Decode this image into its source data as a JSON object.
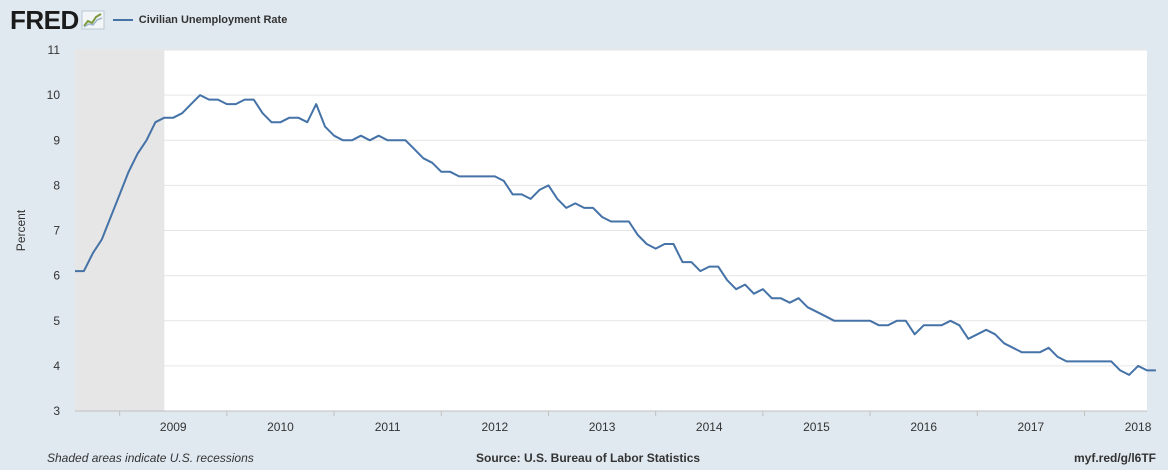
{
  "header": {
    "logo_text": "FRED",
    "logo_icon": "trend-chart-icon"
  },
  "footer": {
    "recession_note": "Shaded areas indicate U.S. recessions",
    "source": "Source: U.S. Bureau of Labor Statistics",
    "short_url": "myf.red/g/l6TF"
  },
  "colors": {
    "line": "#4572a7",
    "recession_shade": "#e6e6e6",
    "plot_background": "#ffffff",
    "page_background": "#e1e9f0",
    "grid": "#e6e6e6"
  },
  "chart_data": {
    "type": "line",
    "title": "",
    "xlabel": "",
    "ylabel": "Percent",
    "ylim": [
      3,
      11
    ],
    "yticks": [
      3,
      4,
      5,
      6,
      7,
      8,
      9,
      10,
      11
    ],
    "xlim": [
      "2008-08",
      "2018-08"
    ],
    "xticks": [
      "2009",
      "2010",
      "2011",
      "2012",
      "2013",
      "2014",
      "2015",
      "2016",
      "2017",
      "2018"
    ],
    "grid": "horizontal",
    "recessions": [
      {
        "start": "2008-08",
        "end": "2009-06"
      }
    ],
    "series": [
      {
        "name": "Civilian Unemployment Rate",
        "start": "2008-08",
        "frequency": "monthly",
        "values": [
          6.1,
          6.1,
          6.5,
          6.8,
          7.3,
          7.8,
          8.3,
          8.7,
          9.0,
          9.4,
          9.5,
          9.5,
          9.6,
          9.8,
          10.0,
          9.9,
          9.9,
          9.8,
          9.8,
          9.9,
          9.9,
          9.6,
          9.4,
          9.4,
          9.5,
          9.5,
          9.4,
          9.8,
          9.3,
          9.1,
          9.0,
          9.0,
          9.1,
          9.0,
          9.1,
          9.0,
          9.0,
          9.0,
          8.8,
          8.6,
          8.5,
          8.3,
          8.3,
          8.2,
          8.2,
          8.2,
          8.2,
          8.2,
          8.1,
          7.8,
          7.8,
          7.7,
          7.9,
          8.0,
          7.7,
          7.5,
          7.6,
          7.5,
          7.5,
          7.3,
          7.2,
          7.2,
          7.2,
          6.9,
          6.7,
          6.6,
          6.7,
          6.7,
          6.3,
          6.3,
          6.1,
          6.2,
          6.2,
          5.9,
          5.7,
          5.8,
          5.6,
          5.7,
          5.5,
          5.5,
          5.4,
          5.5,
          5.3,
          5.2,
          5.1,
          5.0,
          5.0,
          5.0,
          5.0,
          5.0,
          4.9,
          4.9,
          5.0,
          5.0,
          4.7,
          4.9,
          4.9,
          4.9,
          5.0,
          4.9,
          4.6,
          4.7,
          4.8,
          4.7,
          4.5,
          4.4,
          4.3,
          4.3,
          4.3,
          4.4,
          4.2,
          4.1,
          4.1,
          4.1,
          4.1,
          4.1,
          4.1,
          3.9,
          3.8,
          4.0,
          3.9,
          3.9
        ]
      }
    ]
  }
}
